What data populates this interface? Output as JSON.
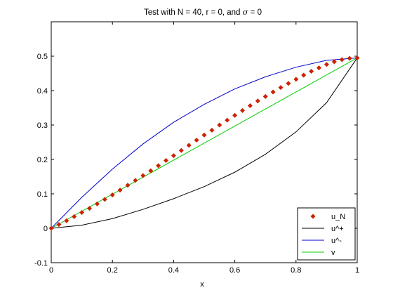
{
  "chart_data": {
    "type": "line",
    "title_prefix": "Test with N = 40, r = 0, and ",
    "title_sigma": "σ",
    "title_suffix": " = 0",
    "xlabel": "x",
    "ylabel": "",
    "xlim": [
      0,
      1
    ],
    "ylim": [
      -0.1,
      0.6
    ],
    "xticks": [
      0,
      0.2,
      0.4,
      0.6,
      0.8,
      1
    ],
    "xtick_labels": [
      "0",
      "0.2",
      "0.4",
      "0.6",
      "0.8",
      "1"
    ],
    "yticks": [
      -0.1,
      0,
      0.1,
      0.2,
      0.3,
      0.4,
      0.5
    ],
    "ytick_labels": [
      "-0.1",
      "0",
      "0.1",
      "0.2",
      "0.3",
      "0.4",
      "0.5"
    ],
    "grid": false,
    "legend_position": "bottom-right",
    "series": [
      {
        "name": "u_N",
        "style": "markers",
        "color": "#cc2200",
        "x": [
          0,
          0.025,
          0.05,
          0.075,
          0.1,
          0.125,
          0.15,
          0.175,
          0.2,
          0.225,
          0.25,
          0.275,
          0.3,
          0.325,
          0.35,
          0.375,
          0.4,
          0.425,
          0.45,
          0.475,
          0.5,
          0.525,
          0.55,
          0.575,
          0.6,
          0.625,
          0.65,
          0.675,
          0.7,
          0.725,
          0.75,
          0.775,
          0.8,
          0.825,
          0.85,
          0.875,
          0.9,
          0.925,
          0.95,
          0.975,
          1
        ],
        "y": [
          0,
          0.011,
          0.022,
          0.034,
          0.046,
          0.058,
          0.071,
          0.084,
          0.097,
          0.111,
          0.125,
          0.139,
          0.153,
          0.167,
          0.182,
          0.197,
          0.211,
          0.226,
          0.241,
          0.256,
          0.271,
          0.285,
          0.3,
          0.314,
          0.328,
          0.342,
          0.356,
          0.37,
          0.383,
          0.396,
          0.409,
          0.421,
          0.433,
          0.445,
          0.456,
          0.466,
          0.476,
          0.484,
          0.49,
          0.494,
          0.495
        ]
      },
      {
        "name": "u^+",
        "style": "line",
        "color": "#000000",
        "x": [
          0,
          0.1,
          0.2,
          0.3,
          0.4,
          0.5,
          0.6,
          0.7,
          0.8,
          0.9,
          1
        ],
        "y": [
          0,
          0.009,
          0.028,
          0.055,
          0.086,
          0.121,
          0.163,
          0.215,
          0.28,
          0.365,
          0.495
        ]
      },
      {
        "name": "u^-",
        "style": "line",
        "color": "#0000cc",
        "x": [
          0,
          0.1,
          0.2,
          0.3,
          0.4,
          0.5,
          0.6,
          0.7,
          0.8,
          0.9,
          1
        ],
        "y": [
          0,
          0.09,
          0.172,
          0.245,
          0.308,
          0.36,
          0.405,
          0.44,
          0.468,
          0.488,
          0.495
        ]
      },
      {
        "name": "v",
        "style": "line",
        "color": "#00cc00",
        "x": [
          0,
          1
        ],
        "y": [
          0,
          0.495
        ]
      }
    ]
  }
}
